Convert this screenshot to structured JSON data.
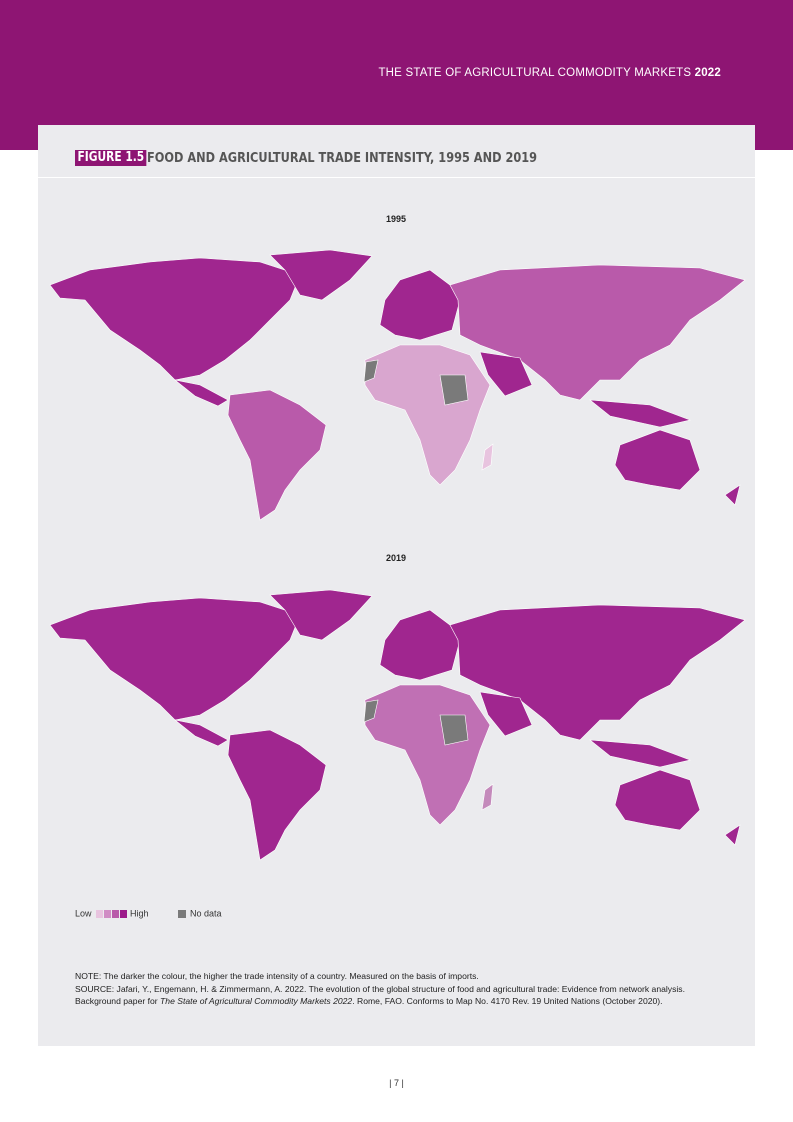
{
  "header": {
    "running_title": "THE STATE OF AGRICULTURAL COMMODITY MARKETS",
    "running_year": "2022"
  },
  "figure": {
    "label": "FIGURE 1.5",
    "title": "FOOD AND AGRICULTURAL TRADE INTENSITY, 1995 AND 2019",
    "maps": [
      {
        "year": "1995"
      },
      {
        "year": "2019"
      }
    ],
    "legend": {
      "low": "Low",
      "high": "High",
      "no_data": "No data"
    },
    "note": "NOTE: The darker the colour, the higher the trade intensity of a country. Measured on the basis of imports.",
    "source": {
      "before": "SOURCE: Jafari, Y., Engemann, H. & Zimmermann, A. 2022. The evolution of the global structure of food and agricultural trade: Evidence from network analysis. Background paper for ",
      "italic": "The State of Agricultural Commodity Markets 2022",
      "after": ". Rome, FAO. Conforms to Map No. 4170 Rev. 19 United Nations (October 2020)."
    }
  },
  "footer": {
    "page_number": "| 7 |"
  }
}
